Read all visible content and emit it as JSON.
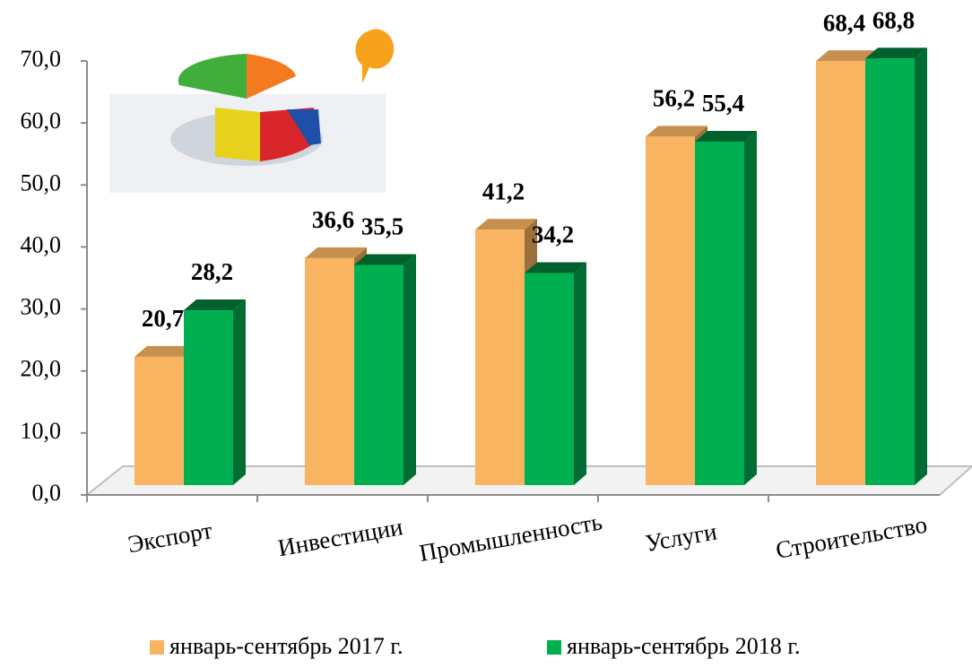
{
  "chart_data": {
    "type": "bar3d",
    "categories": [
      "Экспорт",
      "Инвестиции",
      "Промышленность",
      "Услуги",
      "Строительство"
    ],
    "series": [
      {
        "name": "январь-сентябрь 2017 г.",
        "color": "#f9b462",
        "values": [
          20.7,
          36.6,
          41.2,
          56.2,
          68.4
        ],
        "value_labels": [
          "20,7",
          "36,6",
          "41,2",
          "56,2",
          "68,4"
        ]
      },
      {
        "name": "январь-сентябрь 2018 г.",
        "color": "#00b050",
        "values": [
          28.2,
          35.5,
          34.2,
          55.4,
          68.8
        ],
        "value_labels": [
          "28,2",
          "35,5",
          "34,2",
          "55,4",
          "68,8"
        ]
      }
    ],
    "ylim": [
      0,
      70
    ],
    "yticks": [
      {
        "value": 0,
        "label": "0,0"
      },
      {
        "value": 10,
        "label": "10,0"
      },
      {
        "value": 20,
        "label": "20,0"
      },
      {
        "value": 30,
        "label": "30,0"
      },
      {
        "value": 40,
        "label": "40,0"
      },
      {
        "value": 50,
        "label": "50,0"
      },
      {
        "value": 60,
        "label": "60,0"
      },
      {
        "value": 70,
        "label": "70,0"
      }
    ]
  }
}
